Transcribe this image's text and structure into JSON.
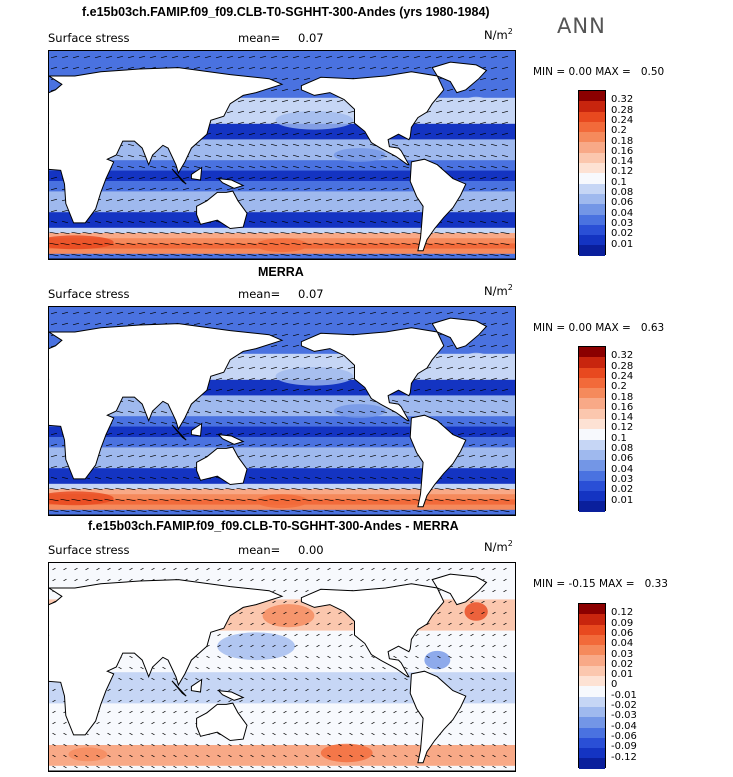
{
  "season": "ANN",
  "panels": [
    {
      "title": "f.e15b03ch.FAMIP.f09_f09.CLB-T0-SGHHT-300-Andes (yrs 1980-1984)",
      "field": "Surface stress",
      "mean_label": "mean=",
      "mean_value": "0.07",
      "units": "N/m",
      "units_exp": "2",
      "min_label": "MIN =",
      "min_value": "0.00",
      "max_label": "MAX =",
      "max_value": "0.50",
      "colorbar_ticks": [
        "0.32",
        "0.28",
        "0.24",
        "0.2",
        "0.18",
        "0.16",
        "0.14",
        "0.12",
        "0.1",
        "0.08",
        "0.06",
        "0.04",
        "0.03",
        "0.02",
        "0.01"
      ],
      "colorbar_colors": [
        "#8b0000",
        "#c8250e",
        "#e8491f",
        "#f26a3a",
        "#f58a5c",
        "#f8a987",
        "#fbc7ae",
        "#fde2d4",
        "#f7f9fd",
        "#c6d6f5",
        "#9fb9ee",
        "#7396e6",
        "#4a72e0",
        "#2a4fd6",
        "#1434c2",
        "#0a1f9c"
      ]
    },
    {
      "title": "MERRA",
      "field": "Surface stress",
      "mean_label": "mean=",
      "mean_value": "0.07",
      "units": "N/m",
      "units_exp": "2",
      "min_label": "MIN =",
      "min_value": "0.00",
      "max_label": "MAX =",
      "max_value": "0.63",
      "colorbar_ticks": [
        "0.32",
        "0.28",
        "0.24",
        "0.2",
        "0.18",
        "0.16",
        "0.14",
        "0.12",
        "0.1",
        "0.08",
        "0.06",
        "0.04",
        "0.03",
        "0.02",
        "0.01"
      ],
      "colorbar_colors": [
        "#8b0000",
        "#c8250e",
        "#e8491f",
        "#f26a3a",
        "#f58a5c",
        "#f8a987",
        "#fbc7ae",
        "#fde2d4",
        "#f7f9fd",
        "#c6d6f5",
        "#9fb9ee",
        "#7396e6",
        "#4a72e0",
        "#2a4fd6",
        "#1434c2",
        "#0a1f9c"
      ]
    },
    {
      "title": "f.e15b03ch.FAMIP.f09_f09.CLB-T0-SGHHT-300-Andes - MERRA",
      "field": "Surface stress",
      "mean_label": "mean=",
      "mean_value": "0.00",
      "units": "N/m",
      "units_exp": "2",
      "min_label": "MIN =",
      "min_value": "-0.15",
      "max_label": "MAX =",
      "max_value": "0.33",
      "colorbar_ticks": [
        "0.12",
        "0.09",
        "0.06",
        "0.04",
        "0.03",
        "0.02",
        "0.01",
        "0",
        "-0.01",
        "-0.02",
        "-0.03",
        "-0.04",
        "-0.06",
        "-0.09",
        "-0.12"
      ],
      "colorbar_colors": [
        "#8b0000",
        "#c8250e",
        "#e8491f",
        "#f26a3a",
        "#f58a5c",
        "#f8a987",
        "#fbc7ae",
        "#fde2d4",
        "#f7f9fd",
        "#c6d6f5",
        "#9fb9ee",
        "#7396e6",
        "#4a72e0",
        "#2a4fd6",
        "#1434c2",
        "#0a1f9c"
      ]
    }
  ],
  "chart_data": [
    {
      "type": "heatmap",
      "title": "f.e15b03ch.FAMIP.f09_f09.CLB-T0-SGHHT-300-Andes (yrs 1980-1984)",
      "variable": "Surface stress",
      "units": "N/m2",
      "mean": 0.07,
      "min": 0.0,
      "max": 0.5,
      "contour_levels": [
        0.01,
        0.02,
        0.03,
        0.04,
        0.06,
        0.08,
        0.1,
        0.12,
        0.14,
        0.16,
        0.18,
        0.2,
        0.24,
        0.28,
        0.32
      ]
    },
    {
      "type": "heatmap",
      "title": "MERRA",
      "variable": "Surface stress",
      "units": "N/m2",
      "mean": 0.07,
      "min": 0.0,
      "max": 0.63,
      "contour_levels": [
        0.01,
        0.02,
        0.03,
        0.04,
        0.06,
        0.08,
        0.1,
        0.12,
        0.14,
        0.16,
        0.18,
        0.2,
        0.24,
        0.28,
        0.32
      ]
    },
    {
      "type": "heatmap",
      "title": "f.e15b03ch.FAMIP.f09_f09.CLB-T0-SGHHT-300-Andes - MERRA",
      "variable": "Surface stress",
      "units": "N/m2",
      "mean": 0.0,
      "min": -0.15,
      "max": 0.33,
      "contour_levels": [
        -0.12,
        -0.09,
        -0.06,
        -0.04,
        -0.03,
        -0.02,
        -0.01,
        0,
        0.01,
        0.02,
        0.03,
        0.04,
        0.06,
        0.09,
        0.12
      ]
    }
  ]
}
